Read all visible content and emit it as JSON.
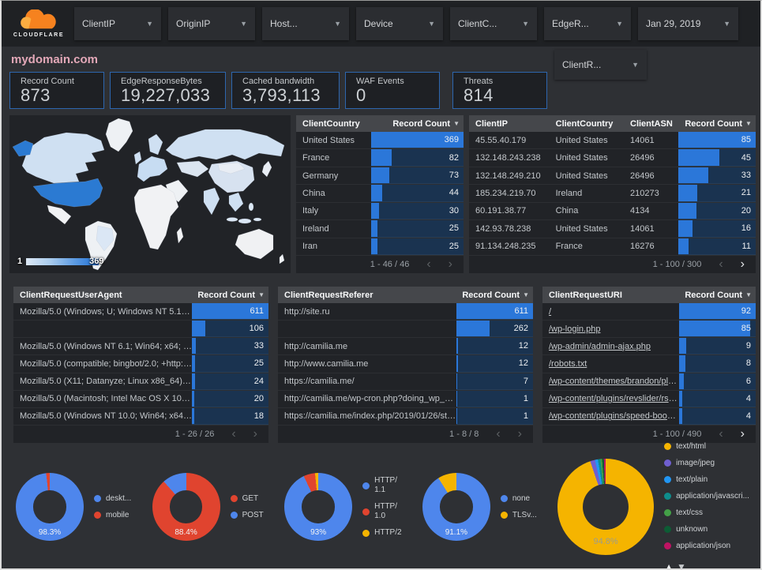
{
  "header": {
    "logo_text": "CLOUDFLARE",
    "domain": "mydomain.com",
    "filters": [
      {
        "label": "ClientIP"
      },
      {
        "label": "OriginIP"
      },
      {
        "label": "Host..."
      },
      {
        "label": "Device"
      },
      {
        "label": "ClientC..."
      },
      {
        "label": "EdgeR..."
      },
      {
        "label": "Jan 29, 2019"
      }
    ],
    "secondary_filter_label": "ClientR..."
  },
  "scorecards": [
    {
      "label": "Record Count",
      "value": "873"
    },
    {
      "label": "EdgeResponseBytes",
      "value": "19,227,033"
    },
    {
      "label": "Cached bandwidth",
      "value": "3,793,113"
    },
    {
      "label": "WAF Events",
      "value": "0"
    },
    {
      "label": "Threats",
      "value": "814"
    }
  ],
  "map": {
    "legend_min": "1",
    "legend_max": "369"
  },
  "tables": {
    "client_country": {
      "headers": [
        "ClientCountry",
        "Record Count"
      ],
      "max": 369,
      "rows": [
        [
          "United States",
          369
        ],
        [
          "France",
          82
        ],
        [
          "Germany",
          73
        ],
        [
          "China",
          44
        ],
        [
          "Italy",
          30
        ],
        [
          "Ireland",
          25
        ],
        [
          "Iran",
          25
        ]
      ],
      "pagination": {
        "label": "1 - 46 / 46",
        "prev": false,
        "next": false
      }
    },
    "client_ip": {
      "headers": [
        "ClientIP",
        "ClientCountry",
        "ClientASN",
        "Record Count"
      ],
      "max": 85,
      "rows": [
        [
          "45.55.40.179",
          "United States",
          "14061",
          85
        ],
        [
          "132.148.243.238",
          "United States",
          "26496",
          45
        ],
        [
          "132.148.249.210",
          "United States",
          "26496",
          33
        ],
        [
          "185.234.219.70",
          "Ireland",
          "210273",
          21
        ],
        [
          "60.191.38.77",
          "China",
          "4134",
          20
        ],
        [
          "142.93.78.238",
          "United States",
          "14061",
          16
        ],
        [
          "91.134.248.235",
          "France",
          "16276",
          11
        ]
      ],
      "pagination": {
        "label": "1 - 100 / 300",
        "prev": false,
        "next": true
      }
    },
    "user_agent": {
      "headers": [
        "ClientRequestUserAgent",
        "Record Count"
      ],
      "max": 611,
      "rows": [
        [
          "Mozilla/5.0 (Windows; U; Windows NT 5.1; en-U...",
          611
        ],
        [
          "",
          106
        ],
        [
          "Mozilla/5.0 (Windows NT 6.1; Win64; x64; rv:64...",
          33
        ],
        [
          "Mozilla/5.0 (compatible; bingbot/2.0; +http://w...",
          25
        ],
        [
          "Mozilla/5.0 (X11; Datanyze; Linux x86_64) Appl...",
          24
        ],
        [
          "Mozilla/5.0 (Macintosh; Intel Mac OS X 10.11; r...",
          20
        ],
        [
          "Mozilla/5.0 (Windows NT 10.0; Win64; x64) App...",
          18
        ]
      ],
      "pagination": {
        "label": "1 - 26 / 26",
        "prev": false,
        "next": false
      }
    },
    "referer": {
      "headers": [
        "ClientRequestReferer",
        "Record Count"
      ],
      "max": 611,
      "rows": [
        [
          "http://site.ru",
          611
        ],
        [
          "",
          262
        ],
        [
          "http://camilia.me",
          12
        ],
        [
          "http://www.camilia.me",
          12
        ],
        [
          "https://camilia.me/",
          7
        ],
        [
          "http://camilia.me/wp-cron.php?doing_wp_cron...",
          1
        ],
        [
          "https://camilia.me/index.php/2019/01/26/stor...",
          1
        ]
      ],
      "pagination": {
        "label": "1 - 8 / 8",
        "prev": false,
        "next": false
      }
    },
    "uri": {
      "headers": [
        "ClientRequestURI",
        "Record Count"
      ],
      "max": 92,
      "links": true,
      "rows": [
        [
          "/",
          92
        ],
        [
          "/wp-login.php",
          85
        ],
        [
          "/wp-admin/admin-ajax.php",
          9
        ],
        [
          "/robots.txt",
          8
        ],
        [
          "/wp-content/themes/brandon/plu...",
          6
        ],
        [
          "/wp-content/plugins/revslider/rs-p...",
          4
        ],
        [
          "/wp-content/plugins/speed-booste...",
          4
        ]
      ],
      "pagination": {
        "label": "1 - 100 / 490",
        "prev": false,
        "next": true
      }
    }
  },
  "donuts": [
    {
      "name": "device-type",
      "pct_label": "98.3%",
      "slices": [
        {
          "label": "deskt...",
          "value": 98.3,
          "color": "#4e86ec"
        },
        {
          "label": "mobile",
          "value": 1.7,
          "color": "#e0442f"
        }
      ]
    },
    {
      "name": "request-method",
      "pct_label": "88.4%",
      "slices": [
        {
          "label": "GET",
          "value": 88.4,
          "color": "#e0442f"
        },
        {
          "label": "POST",
          "value": 11.6,
          "color": "#4e86ec"
        }
      ]
    },
    {
      "name": "http-protocol",
      "pct_label": "93%",
      "slices": [
        {
          "label": "HTTP/\n1.1",
          "value": 93,
          "color": "#4e86ec"
        },
        {
          "label": "HTTP/\n1.0",
          "value": 5.5,
          "color": "#e0442f"
        },
        {
          "label": "HTTP/2",
          "value": 1.5,
          "color": "#f5b400"
        }
      ]
    },
    {
      "name": "tls-version",
      "pct_label": "91.1%",
      "slices": [
        {
          "label": "none",
          "value": 91.1,
          "color": "#4e86ec"
        },
        {
          "label": "TLSv...",
          "value": 8.9,
          "color": "#f5b400"
        }
      ]
    },
    {
      "name": "content-type",
      "pct_label": "94.8%",
      "large": true,
      "pct_muted": true,
      "slices": [
        {
          "label": "text/html",
          "value": 94.8,
          "color": "#f5b400"
        },
        {
          "label": "image/jpeg",
          "value": 1.6,
          "color": "#6f5fd0"
        },
        {
          "label": "text/plain",
          "value": 1.0,
          "color": "#2196f3"
        },
        {
          "label": "application/javascri...",
          "value": 0.8,
          "color": "#0e8c8c"
        },
        {
          "label": "text/css",
          "value": 0.6,
          "color": "#43a047"
        },
        {
          "label": "unknown",
          "value": 0.6,
          "color": "#0d5c35"
        },
        {
          "label": "application/json",
          "value": 0.6,
          "color": "#bf1363"
        }
      ]
    }
  ]
}
